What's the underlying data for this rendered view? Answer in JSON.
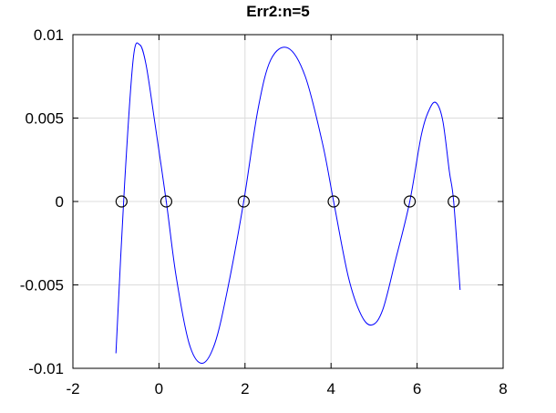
{
  "chart_data": {
    "type": "line",
    "title": "Err2:n=5",
    "xlabel": "",
    "ylabel": "",
    "xlim": [
      -2,
      8
    ],
    "ylim": [
      -0.01,
      0.01
    ],
    "x_ticks": [
      -2,
      0,
      2,
      4,
      6,
      8
    ],
    "x_tick_labels": [
      "-2",
      "0",
      "2",
      "4",
      "6",
      "8"
    ],
    "y_ticks": [
      -0.01,
      -0.005,
      0,
      0.005,
      0.01
    ],
    "y_tick_labels": [
      "-0.01",
      "-0.005",
      "0",
      "0.005",
      "0.01"
    ],
    "grid": true,
    "series": [
      {
        "kind": "line",
        "color": "#0000ff",
        "x": [
          -1.0,
          -0.8,
          -0.6,
          -0.45,
          -0.3,
          -0.1,
          0.17,
          0.4,
          0.7,
          1.0,
          1.3,
          1.6,
          1.97,
          2.3,
          2.6,
          3.0,
          3.4,
          3.8,
          4.06,
          4.4,
          4.7,
          4.95,
          5.2,
          5.5,
          5.83,
          6.1,
          6.3,
          6.45,
          6.6,
          6.75,
          6.85,
          7.0
        ],
        "y": [
          -0.0091,
          0.001,
          0.0085,
          0.0094,
          0.0082,
          0.0048,
          0.0,
          -0.0045,
          -0.0085,
          -0.0097,
          -0.0085,
          -0.0052,
          0.0,
          0.0055,
          0.0085,
          0.0092,
          0.0075,
          0.0035,
          0.0,
          -0.0045,
          -0.0068,
          -0.0074,
          -0.0065,
          -0.0035,
          0.0,
          0.004,
          0.0056,
          0.0059,
          0.0048,
          0.0018,
          0.0,
          -0.0053
        ]
      },
      {
        "kind": "markers",
        "marker": "open-circle",
        "color": "#000000",
        "x": [
          -0.87,
          0.17,
          1.97,
          4.06,
          5.83,
          6.85
        ],
        "y": [
          0,
          0,
          0,
          0,
          0,
          0
        ]
      }
    ]
  }
}
